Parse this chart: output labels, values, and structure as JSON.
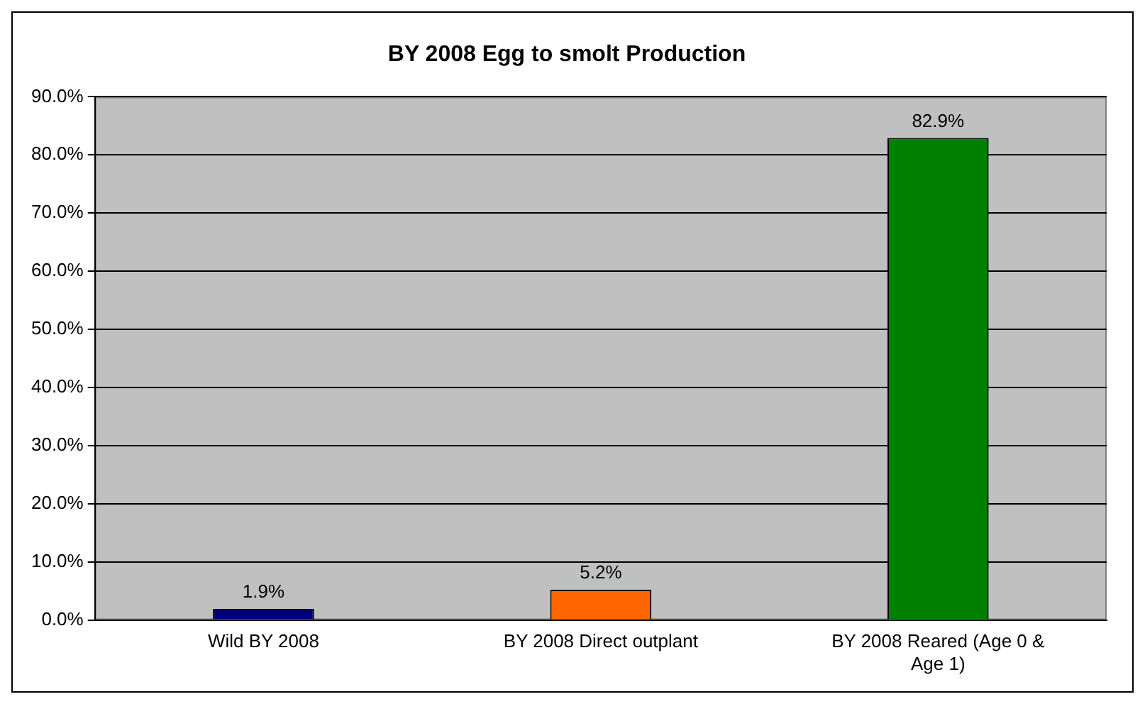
{
  "chart_data": {
    "type": "bar",
    "title": "BY 2008 Egg to smolt Production",
    "categories": [
      "Wild BY 2008",
      "BY 2008 Direct outplant",
      "BY 2008 Reared (Age 0 & Age 1)"
    ],
    "values": [
      1.9,
      5.2,
      82.9
    ],
    "colors": [
      "#000080",
      "#ff6600",
      "#008000"
    ],
    "value_labels": [
      "1.9%",
      "5.2%",
      "82.9%"
    ],
    "ylim": [
      0,
      90
    ],
    "yticks": [
      {
        "value": 0,
        "label": "0.0%"
      },
      {
        "value": 10,
        "label": "10.0%"
      },
      {
        "value": 20,
        "label": "20.0%"
      },
      {
        "value": 30,
        "label": "30.0%"
      },
      {
        "value": 40,
        "label": "40.0%"
      },
      {
        "value": 50,
        "label": "50.0%"
      },
      {
        "value": 60,
        "label": "60.0%"
      },
      {
        "value": 70,
        "label": "70.0%"
      },
      {
        "value": 80,
        "label": "80.0%"
      },
      {
        "value": 90,
        "label": "90.0%"
      }
    ],
    "grid": "y",
    "legend": false
  }
}
